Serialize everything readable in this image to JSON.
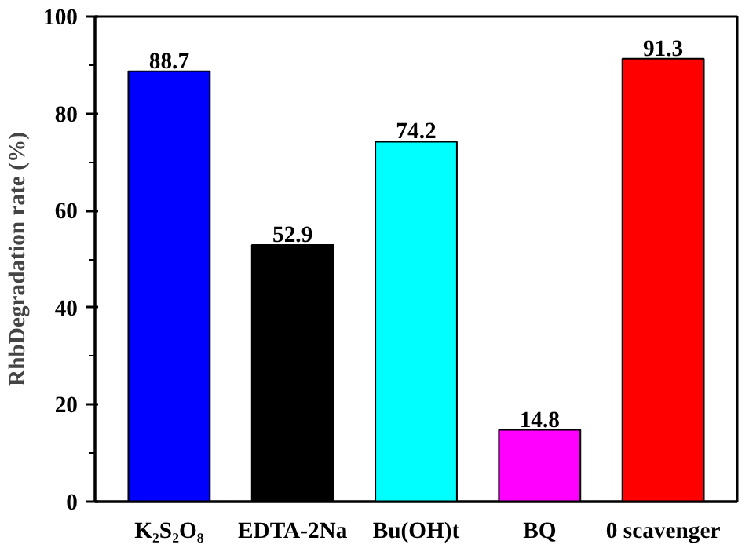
{
  "chart_data": {
    "type": "bar",
    "ylabel": "RhbDegradation rate (%)",
    "categories": [
      "K₂S₂O₈",
      "EDTA-2Na",
      "Bu(OH)t",
      "BQ",
      "0 scavenger"
    ],
    "values": [
      88.7,
      52.9,
      74.2,
      14.8,
      91.3
    ],
    "colors": [
      "#0000ff",
      "#000000",
      "#00ffff",
      "#ff00ff",
      "#ff0000"
    ],
    "ylim": [
      0,
      100
    ],
    "yticks": [
      0,
      20,
      40,
      60,
      80,
      100
    ],
    "data_labels": true,
    "grid": false
  }
}
